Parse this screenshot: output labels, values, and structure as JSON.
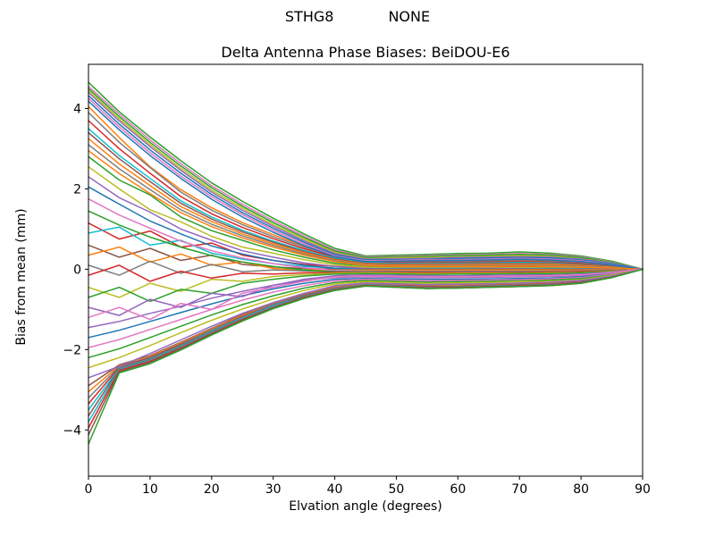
{
  "figure": {
    "suptitle": "STHG8            NONE",
    "background": "#ffffff"
  },
  "chart_data": {
    "type": "line",
    "title": "Delta Antenna Phase Biases: BeiDOU-E6",
    "suptitle": "STHG8            NONE",
    "xlabel": "Elvation angle (degrees)",
    "ylabel": "Bias from mean (mm)",
    "xlim": [
      0,
      90
    ],
    "ylim": [
      -5.15,
      5.1
    ],
    "x_ticks": [
      0,
      10,
      20,
      30,
      40,
      50,
      60,
      70,
      80,
      90
    ],
    "y_ticks": [
      -4,
      -2,
      0,
      2,
      4
    ],
    "grid": false,
    "legend": "none",
    "axis_color": "#000000",
    "palette": [
      "#1f77b4",
      "#ff7f0e",
      "#2ca02c",
      "#d62728",
      "#9467bd",
      "#8c564b",
      "#e377c2",
      "#7f7f7f",
      "#bcbd22",
      "#17becf"
    ],
    "x": [
      0,
      5,
      10,
      15,
      20,
      25,
      30,
      35,
      40,
      45,
      50,
      55,
      60,
      65,
      70,
      75,
      80,
      85,
      90
    ],
    "series": [
      {
        "color": "#2ca02c",
        "y": [
          4.65,
          3.92,
          3.29,
          2.7,
          2.15,
          1.69,
          1.27,
          0.88,
          0.52,
          0.33,
          0.35,
          0.37,
          0.39,
          0.4,
          0.43,
          0.4,
          0.33,
          0.2,
          0
        ]
      },
      {
        "color": "#ff7f0e",
        "y": [
          4.05,
          3.28,
          2.55,
          1.98,
          1.53,
          1.16,
          0.86,
          0.58,
          0.36,
          0.24,
          0.2,
          0.21,
          0.21,
          0.22,
          0.23,
          0.22,
          0.18,
          0.1,
          0
        ]
      },
      {
        "color": "#2ca02c",
        "y": [
          2.8,
          2.22,
          1.85,
          1.3,
          0.96,
          0.72,
          0.48,
          0.3,
          0.15,
          0.08,
          0.05,
          0.05,
          0.05,
          0.06,
          0.06,
          0.05,
          0.04,
          0.03,
          0
        ]
      },
      {
        "color": "#d62728",
        "y": [
          1.15,
          0.75,
          0.95,
          0.55,
          0.65,
          0.35,
          0.22,
          0.12,
          0.07,
          0.05,
          0.04,
          0.04,
          0.04,
          0.05,
          0.05,
          0.05,
          0.04,
          0.02,
          0
        ]
      },
      {
        "color": "#9467bd",
        "y": [
          -1.45,
          -1.3,
          -1.1,
          -0.92,
          -0.72,
          -0.55,
          -0.4,
          -0.28,
          -0.21,
          -0.19,
          -0.2,
          -0.21,
          -0.21,
          -0.2,
          -0.19,
          -0.18,
          -0.16,
          -0.09,
          0
        ]
      },
      {
        "color": "#8c564b",
        "y": [
          -2.9,
          -2.38,
          -2.15,
          -1.82,
          -1.47,
          -1.13,
          -0.84,
          -0.61,
          -0.44,
          -0.36,
          -0.38,
          -0.4,
          -0.4,
          -0.38,
          -0.36,
          -0.34,
          -0.3,
          -0.17,
          0
        ]
      },
      {
        "color": "#e377c2",
        "y": [
          4.55,
          3.86,
          3.22,
          2.63,
          2.08,
          1.62,
          1.21,
          0.83,
          0.48,
          0.31,
          0.32,
          0.34,
          0.36,
          0.37,
          0.39,
          0.37,
          0.31,
          0.18,
          0
        ]
      },
      {
        "color": "#7f7f7f",
        "y": [
          3.9,
          3.16,
          2.53,
          1.92,
          1.47,
          1.11,
          0.81,
          0.55,
          0.33,
          0.21,
          0.18,
          0.19,
          0.19,
          0.2,
          0.21,
          0.2,
          0.16,
          0.09,
          0
        ]
      },
      {
        "color": "#bcbd22",
        "y": [
          2.55,
          2.0,
          1.48,
          1.18,
          0.82,
          0.55,
          0.4,
          0.24,
          0.11,
          0.05,
          0.03,
          0.03,
          0.03,
          0.03,
          0.04,
          0.03,
          0.03,
          0.02,
          0
        ]
      },
      {
        "color": "#17becf",
        "y": [
          0.9,
          1.05,
          0.6,
          0.72,
          0.4,
          0.25,
          0.14,
          0.07,
          0.03,
          0.02,
          0.02,
          0.02,
          0.02,
          0.02,
          0.02,
          0.02,
          0.02,
          0.01,
          0
        ]
      },
      {
        "color": "#1f77b4",
        "y": [
          -1.7,
          -1.52,
          -1.3,
          -1.08,
          -0.86,
          -0.66,
          -0.49,
          -0.35,
          -0.25,
          -0.23,
          -0.24,
          -0.25,
          -0.25,
          -0.24,
          -0.23,
          -0.22,
          -0.19,
          -0.11,
          0
        ]
      },
      {
        "color": "#ff7f0e",
        "y": [
          -3.05,
          -2.4,
          -2.17,
          -1.84,
          -1.49,
          -1.15,
          -0.86,
          -0.62,
          -0.45,
          -0.37,
          -0.39,
          -0.41,
          -0.41,
          -0.39,
          -0.37,
          -0.35,
          -0.3,
          -0.18,
          0
        ]
      },
      {
        "color": "#2ca02c",
        "y": [
          4.5,
          3.8,
          3.16,
          2.57,
          2.03,
          1.57,
          1.16,
          0.79,
          0.45,
          0.29,
          0.3,
          0.32,
          0.34,
          0.35,
          0.37,
          0.35,
          0.29,
          0.17,
          0
        ]
      },
      {
        "color": "#d62728",
        "y": [
          3.7,
          3.0,
          2.39,
          1.81,
          1.38,
          1.04,
          0.76,
          0.51,
          0.3,
          0.19,
          0.16,
          0.17,
          0.17,
          0.18,
          0.19,
          0.18,
          0.14,
          0.08,
          0
        ]
      },
      {
        "color": "#9467bd",
        "y": [
          2.3,
          1.78,
          1.42,
          1.0,
          0.72,
          0.46,
          0.3,
          0.16,
          0.07,
          0.02,
          0.0,
          0.0,
          0.0,
          0.01,
          0.01,
          0.0,
          0.0,
          0.0,
          0
        ]
      },
      {
        "color": "#8c564b",
        "y": [
          0.6,
          0.3,
          0.52,
          0.22,
          0.35,
          0.12,
          0.06,
          0.02,
          0.0,
          0.0,
          0.0,
          0.0,
          0.0,
          0.0,
          0.0,
          0.0,
          0.0,
          0.0,
          0
        ]
      },
      {
        "color": "#e377c2",
        "y": [
          -1.95,
          -1.75,
          -1.5,
          -1.25,
          -1.0,
          -0.77,
          -0.57,
          -0.41,
          -0.29,
          -0.25,
          -0.27,
          -0.29,
          -0.28,
          -0.27,
          -0.26,
          -0.24,
          -0.21,
          -0.12,
          0
        ]
      },
      {
        "color": "#7f7f7f",
        "y": [
          -3.2,
          -2.42,
          -2.19,
          -1.86,
          -1.51,
          -1.17,
          -0.87,
          -0.64,
          -0.46,
          -0.38,
          -0.4,
          -0.42,
          -0.42,
          -0.4,
          -0.38,
          -0.36,
          -0.31,
          -0.18,
          0
        ]
      },
      {
        "color": "#bcbd22",
        "y": [
          4.45,
          3.74,
          3.1,
          2.51,
          1.97,
          1.52,
          1.11,
          0.75,
          0.42,
          0.26,
          0.28,
          0.29,
          0.31,
          0.32,
          0.34,
          0.32,
          0.26,
          0.16,
          0
        ]
      },
      {
        "color": "#17becf",
        "y": [
          3.5,
          2.83,
          2.26,
          1.7,
          1.3,
          0.97,
          0.7,
          0.47,
          0.27,
          0.17,
          0.14,
          0.15,
          0.15,
          0.16,
          0.17,
          0.16,
          0.12,
          0.07,
          0
        ]
      },
      {
        "color": "#1f77b4",
        "y": [
          2.05,
          1.62,
          1.2,
          0.88,
          0.58,
          0.38,
          0.22,
          0.1,
          0.02,
          -0.01,
          -0.02,
          -0.02,
          -0.02,
          -0.02,
          -0.02,
          -0.02,
          -0.02,
          -0.01,
          0
        ]
      },
      {
        "color": "#ff7f0e",
        "y": [
          0.35,
          0.55,
          0.18,
          0.38,
          0.1,
          0.18,
          0.02,
          -0.02,
          -0.02,
          -0.02,
          -0.02,
          -0.02,
          -0.02,
          -0.02,
          -0.02,
          -0.02,
          -0.02,
          -0.01,
          0
        ]
      },
      {
        "color": "#2ca02c",
        "y": [
          -2.2,
          -1.98,
          -1.7,
          -1.42,
          -1.14,
          -0.88,
          -0.66,
          -0.47,
          -0.33,
          -0.28,
          -0.3,
          -0.32,
          -0.31,
          -0.3,
          -0.29,
          -0.27,
          -0.23,
          -0.14,
          0
        ]
      },
      {
        "color": "#d62728",
        "y": [
          -3.35,
          -2.44,
          -2.21,
          -1.88,
          -1.53,
          -1.18,
          -0.89,
          -0.65,
          -0.47,
          -0.39,
          -0.41,
          -0.43,
          -0.43,
          -0.41,
          -0.39,
          -0.37,
          -0.32,
          -0.19,
          0
        ]
      },
      {
        "color": "#9467bd",
        "y": [
          4.4,
          3.69,
          3.05,
          2.46,
          1.92,
          1.47,
          1.07,
          0.71,
          0.39,
          0.25,
          0.26,
          0.27,
          0.29,
          0.3,
          0.31,
          0.3,
          0.25,
          0.15,
          0
        ]
      },
      {
        "color": "#8c564b",
        "y": [
          3.4,
          2.75,
          2.18,
          1.64,
          1.25,
          0.93,
          0.67,
          0.44,
          0.25,
          0.15,
          0.12,
          0.13,
          0.13,
          0.14,
          0.14,
          0.14,
          0.11,
          0.06,
          0
        ]
      },
      {
        "color": "#e377c2",
        "y": [
          1.75,
          1.35,
          1.02,
          0.7,
          0.46,
          0.28,
          0.14,
          0.04,
          -0.03,
          -0.05,
          -0.05,
          -0.05,
          -0.05,
          -0.05,
          -0.05,
          -0.05,
          -0.04,
          -0.02,
          0
        ]
      },
      {
        "color": "#7f7f7f",
        "y": [
          0.1,
          -0.15,
          0.2,
          -0.1,
          0.12,
          -0.06,
          -0.02,
          -0.04,
          -0.05,
          -0.05,
          -0.05,
          -0.05,
          -0.05,
          -0.05,
          -0.05,
          -0.05,
          -0.04,
          -0.02,
          0
        ]
      },
      {
        "color": "#bcbd22",
        "y": [
          -2.45,
          -2.2,
          -1.9,
          -1.58,
          -1.27,
          -0.99,
          -0.74,
          -0.53,
          -0.37,
          -0.31,
          -0.33,
          -0.35,
          -0.34,
          -0.33,
          -0.31,
          -0.3,
          -0.26,
          -0.15,
          0
        ]
      },
      {
        "color": "#17becf",
        "y": [
          -3.5,
          -2.46,
          -2.23,
          -1.9,
          -1.54,
          -1.2,
          -0.9,
          -0.66,
          -0.48,
          -0.39,
          -0.42,
          -0.45,
          -0.44,
          -0.42,
          -0.4,
          -0.38,
          -0.33,
          -0.19,
          0
        ]
      },
      {
        "color": "#1f77b4",
        "y": [
          4.32,
          3.61,
          2.97,
          2.39,
          1.86,
          1.41,
          1.02,
          0.67,
          0.36,
          0.23,
          0.24,
          0.25,
          0.27,
          0.28,
          0.29,
          0.28,
          0.23,
          0.14,
          0
        ]
      },
      {
        "color": "#ff7f0e",
        "y": [
          3.25,
          2.62,
          2.08,
          1.56,
          1.19,
          0.88,
          0.63,
          0.41,
          0.23,
          0.13,
          0.1,
          0.11,
          0.11,
          0.12,
          0.12,
          0.12,
          0.09,
          0.05,
          0
        ]
      },
      {
        "color": "#2ca02c",
        "y": [
          1.45,
          1.1,
          0.8,
          0.55,
          0.34,
          0.18,
          0.07,
          -0.02,
          -0.07,
          -0.08,
          -0.08,
          -0.08,
          -0.08,
          -0.08,
          -0.08,
          -0.07,
          -0.06,
          -0.04,
          0
        ]
      },
      {
        "color": "#d62728",
        "y": [
          -0.15,
          0.1,
          -0.3,
          -0.05,
          -0.22,
          -0.1,
          -0.12,
          -0.09,
          -0.08,
          -0.08,
          -0.08,
          -0.08,
          -0.08,
          -0.08,
          -0.08,
          -0.07,
          -0.06,
          -0.04,
          0
        ]
      },
      {
        "color": "#9467bd",
        "y": [
          -2.7,
          -2.42,
          -2.1,
          -1.76,
          -1.42,
          -1.1,
          -0.83,
          -0.6,
          -0.41,
          -0.34,
          -0.36,
          -0.38,
          -0.37,
          -0.36,
          -0.34,
          -0.32,
          -0.28,
          -0.17,
          0
        ]
      },
      {
        "color": "#8c564b",
        "y": [
          -3.65,
          -2.48,
          -2.25,
          -1.92,
          -1.56,
          -1.22,
          -0.92,
          -0.67,
          -0.49,
          -0.4,
          -0.43,
          -0.46,
          -0.45,
          -0.43,
          -0.41,
          -0.39,
          -0.33,
          -0.2,
          0
        ]
      },
      {
        "color": "#e377c2",
        "y": [
          4.25,
          3.54,
          2.9,
          2.32,
          1.8,
          1.36,
          0.97,
          0.63,
          0.33,
          0.21,
          0.22,
          0.24,
          0.24,
          0.25,
          0.27,
          0.25,
          0.21,
          0.12,
          0
        ]
      },
      {
        "color": "#7f7f7f",
        "y": [
          3.1,
          2.5,
          1.98,
          1.48,
          1.12,
          0.83,
          0.59,
          0.38,
          0.21,
          0.11,
          0.08,
          0.09,
          0.09,
          0.09,
          0.1,
          0.09,
          0.07,
          0.04,
          0
        ]
      },
      {
        "color": "#bcbd22",
        "y": [
          -0.45,
          -0.7,
          -0.35,
          -0.55,
          -0.25,
          -0.3,
          -0.18,
          -0.13,
          -0.1,
          -0.09,
          -0.1,
          -0.11,
          -0.1,
          -0.1,
          -0.1,
          -0.09,
          -0.08,
          -0.05,
          0
        ]
      },
      {
        "color": "#17becf",
        "y": [
          -3.8,
          -2.5,
          -2.27,
          -1.94,
          -1.58,
          -1.23,
          -0.93,
          -0.69,
          -0.5,
          -0.41,
          -0.44,
          -0.47,
          -0.46,
          -0.44,
          -0.42,
          -0.4,
          -0.34,
          -0.2,
          0
        ]
      },
      {
        "color": "#1f77b4",
        "y": [
          4.18,
          3.47,
          2.83,
          2.26,
          1.74,
          1.3,
          0.92,
          0.59,
          0.31,
          0.19,
          0.2,
          0.22,
          0.22,
          0.23,
          0.25,
          0.23,
          0.19,
          0.11,
          0
        ]
      },
      {
        "color": "#ff7f0e",
        "y": [
          2.95,
          2.38,
          1.88,
          1.41,
          1.06,
          0.78,
          0.55,
          0.35,
          0.19,
          0.09,
          0.07,
          0.07,
          0.07,
          0.07,
          0.08,
          0.07,
          0.05,
          0.03,
          0
        ]
      },
      {
        "color": "#2ca02c",
        "y": [
          -0.7,
          -0.45,
          -0.8,
          -0.5,
          -0.6,
          -0.35,
          -0.25,
          -0.17,
          -0.12,
          -0.11,
          -0.12,
          -0.13,
          -0.12,
          -0.12,
          -0.11,
          -0.11,
          -0.09,
          -0.06,
          0
        ]
      },
      {
        "color": "#d62728",
        "y": [
          -3.95,
          -2.52,
          -2.29,
          -1.96,
          -1.6,
          -1.25,
          -0.95,
          -0.7,
          -0.51,
          -0.41,
          -0.44,
          -0.47,
          -0.46,
          -0.44,
          -0.42,
          -0.4,
          -0.34,
          -0.2,
          0
        ]
      },
      {
        "color": "#9467bd",
        "y": [
          -0.95,
          -1.15,
          -0.75,
          -0.95,
          -0.6,
          -0.68,
          -0.4,
          -0.25,
          -0.16,
          -0.14,
          -0.15,
          -0.16,
          -0.16,
          -0.15,
          -0.14,
          -0.14,
          -0.12,
          -0.07,
          0
        ]
      },
      {
        "color": "#8c564b",
        "y": [
          -4.12,
          -2.55,
          -2.32,
          -1.98,
          -1.62,
          -1.27,
          -0.96,
          -0.71,
          -0.52,
          -0.42,
          -0.45,
          -0.48,
          -0.47,
          -0.45,
          -0.43,
          -0.41,
          -0.35,
          -0.21,
          0
        ]
      },
      {
        "color": "#e377c2",
        "y": [
          -1.2,
          -0.95,
          -1.25,
          -0.85,
          -1.0,
          -0.6,
          -0.45,
          -0.3,
          -0.19,
          -0.17,
          -0.18,
          -0.19,
          -0.19,
          -0.18,
          -0.17,
          -0.16,
          -0.14,
          -0.08,
          0
        ]
      },
      {
        "color": "#2ca02c",
        "y": [
          -4.35,
          -2.58,
          -2.35,
          -2.01,
          -1.64,
          -1.29,
          -0.98,
          -0.73,
          -0.53,
          -0.42,
          -0.45,
          -0.48,
          -0.47,
          -0.45,
          -0.43,
          -0.41,
          -0.35,
          -0.21,
          0
        ]
      }
    ]
  }
}
